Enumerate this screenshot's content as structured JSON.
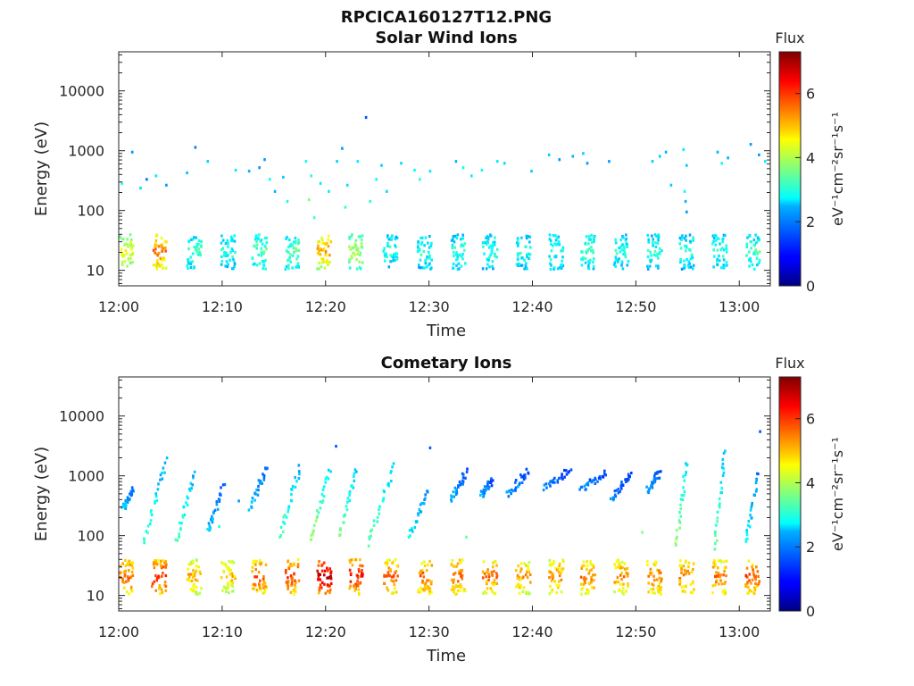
{
  "page_title": "RPCICA160127T12.PNG",
  "chart_data": [
    {
      "type": "heatmap",
      "title": "Solar Wind Ions",
      "xlabel": "Time",
      "ylabel": "Energy (eV)",
      "x_ticks": [
        "12:00",
        "12:10",
        "12:20",
        "12:30",
        "12:40",
        "12:50",
        "13:00"
      ],
      "x_tick_minutes": [
        0,
        10,
        20,
        30,
        40,
        50,
        60
      ],
      "xlim_minutes": [
        0,
        63
      ],
      "y_scale": "log",
      "ylim": [
        5.5,
        45000
      ],
      "y_ticks": [
        10,
        100,
        1000,
        10000
      ],
      "y_tick_labels": [
        "10",
        "100",
        "1000",
        "10000"
      ],
      "colorbar": {
        "title": "Flux",
        "label": "eV⁻¹cm⁻²sr⁻¹s⁻¹",
        "range": [
          0,
          7.3
        ],
        "ticks": [
          0,
          2,
          4,
          6
        ],
        "colormap": "jet"
      },
      "low_energy_bursts": [
        {
          "t": 0.6,
          "v": 4.5
        },
        {
          "t": 3.8,
          "v": 5.5
        },
        {
          "t": 7.2,
          "v": 3.2
        },
        {
          "t": 10.5,
          "v": 3.0
        },
        {
          "t": 13.5,
          "v": 3.3
        },
        {
          "t": 16.7,
          "v": 3.4
        },
        {
          "t": 19.8,
          "v": 5.2
        },
        {
          "t": 22.8,
          "v": 4.0
        },
        {
          "t": 26.2,
          "v": 3.0
        },
        {
          "t": 29.5,
          "v": 3.0
        },
        {
          "t": 32.7,
          "v": 3.0
        },
        {
          "t": 35.8,
          "v": 3.0
        },
        {
          "t": 39.0,
          "v": 3.0
        },
        {
          "t": 42.2,
          "v": 3.0
        },
        {
          "t": 45.3,
          "v": 3.2
        },
        {
          "t": 48.5,
          "v": 3.0
        },
        {
          "t": 51.7,
          "v": 3.0
        },
        {
          "t": 54.8,
          "v": 3.0
        },
        {
          "t": 58.0,
          "v": 3.0
        },
        {
          "t": 61.2,
          "v": 3.2
        }
      ],
      "scattered_pixels": [
        {
          "t": 0.2,
          "e": 300,
          "v": 2.8
        },
        {
          "t": 1.2,
          "e": 1000,
          "v": 2.0
        },
        {
          "t": 2.0,
          "e": 250,
          "v": 2.5
        },
        {
          "t": 2.6,
          "e": 350,
          "v": 1.8
        },
        {
          "t": 3.5,
          "e": 400,
          "v": 2.6
        },
        {
          "t": 4.5,
          "e": 280,
          "v": 2.0
        },
        {
          "t": 6.5,
          "e": 450,
          "v": 2.3
        },
        {
          "t": 7.3,
          "e": 1200,
          "v": 1.8
        },
        {
          "t": 8.5,
          "e": 700,
          "v": 2.4
        },
        {
          "t": 11.2,
          "e": 500,
          "v": 2.6
        },
        {
          "t": 12.5,
          "e": 480,
          "v": 2.2
        },
        {
          "t": 13.5,
          "e": 550,
          "v": 2.0
        },
        {
          "t": 14.0,
          "e": 750,
          "v": 2.0
        },
        {
          "t": 14.5,
          "e": 350,
          "v": 2.8
        },
        {
          "t": 15.0,
          "e": 220,
          "v": 2.2
        },
        {
          "t": 15.8,
          "e": 380,
          "v": 2.4
        },
        {
          "t": 16.2,
          "e": 150,
          "v": 2.9
        },
        {
          "t": 18.0,
          "e": 700,
          "v": 2.8
        },
        {
          "t": 18.5,
          "e": 400,
          "v": 3.0
        },
        {
          "t": 18.3,
          "e": 160,
          "v": 3.6
        },
        {
          "t": 18.8,
          "e": 80,
          "v": 3.2
        },
        {
          "t": 19.4,
          "e": 300,
          "v": 2.6
        },
        {
          "t": 20.2,
          "e": 220,
          "v": 2.6
        },
        {
          "t": 21.0,
          "e": 700,
          "v": 2.4
        },
        {
          "t": 21.5,
          "e": 1150,
          "v": 2.0
        },
        {
          "t": 21.8,
          "e": 120,
          "v": 3.0
        },
        {
          "t": 22.0,
          "e": 280,
          "v": 2.5
        },
        {
          "t": 23.0,
          "e": 700,
          "v": 2.6
        },
        {
          "t": 23.8,
          "e": 3800,
          "v": 1.5
        },
        {
          "t": 24.2,
          "e": 150,
          "v": 3.0
        },
        {
          "t": 24.8,
          "e": 350,
          "v": 2.8
        },
        {
          "t": 25.3,
          "e": 600,
          "v": 2.4
        },
        {
          "t": 25.8,
          "e": 220,
          "v": 2.5
        },
        {
          "t": 27.2,
          "e": 650,
          "v": 2.5
        },
        {
          "t": 28.5,
          "e": 500,
          "v": 2.8
        },
        {
          "t": 29.0,
          "e": 350,
          "v": 3.0
        },
        {
          "t": 30.0,
          "e": 480,
          "v": 2.6
        },
        {
          "t": 32.5,
          "e": 700,
          "v": 2.2
        },
        {
          "t": 33.2,
          "e": 550,
          "v": 2.8
        },
        {
          "t": 34.0,
          "e": 400,
          "v": 2.6
        },
        {
          "t": 35.0,
          "e": 500,
          "v": 2.8
        },
        {
          "t": 36.5,
          "e": 700,
          "v": 2.6
        },
        {
          "t": 37.2,
          "e": 650,
          "v": 2.5
        },
        {
          "t": 39.8,
          "e": 480,
          "v": 2.4
        },
        {
          "t": 41.5,
          "e": 900,
          "v": 2.4
        },
        {
          "t": 42.5,
          "e": 750,
          "v": 2.0
        },
        {
          "t": 43.8,
          "e": 850,
          "v": 2.2
        },
        {
          "t": 44.8,
          "e": 950,
          "v": 2.4
        },
        {
          "t": 45.2,
          "e": 650,
          "v": 2.0
        },
        {
          "t": 47.3,
          "e": 700,
          "v": 2.0
        },
        {
          "t": 51.5,
          "e": 700,
          "v": 2.4
        },
        {
          "t": 52.2,
          "e": 850,
          "v": 2.4
        },
        {
          "t": 52.8,
          "e": 1000,
          "v": 2.2
        },
        {
          "t": 53.3,
          "e": 280,
          "v": 2.4
        },
        {
          "t": 54.5,
          "e": 1100,
          "v": 2.6
        },
        {
          "t": 54.8,
          "e": 600,
          "v": 2.4
        },
        {
          "t": 54.6,
          "e": 220,
          "v": 2.8
        },
        {
          "t": 54.7,
          "e": 150,
          "v": 2.2
        },
        {
          "t": 54.8,
          "e": 100,
          "v": 2.0
        },
        {
          "t": 57.8,
          "e": 1000,
          "v": 2.2
        },
        {
          "t": 58.2,
          "e": 650,
          "v": 2.8
        },
        {
          "t": 58.8,
          "e": 800,
          "v": 2.2
        },
        {
          "t": 61.0,
          "e": 1350,
          "v": 2.0
        },
        {
          "t": 61.8,
          "e": 900,
          "v": 2.0
        },
        {
          "t": 62.4,
          "e": 700,
          "v": 2.6
        }
      ]
    },
    {
      "type": "heatmap",
      "title": "Cometary Ions",
      "xlabel": "Time",
      "ylabel": "Energy (eV)",
      "x_ticks": [
        "12:00",
        "12:10",
        "12:20",
        "12:30",
        "12:40",
        "12:50",
        "13:00"
      ],
      "x_tick_minutes": [
        0,
        10,
        20,
        30,
        40,
        50,
        60
      ],
      "xlim_minutes": [
        0,
        63
      ],
      "y_scale": "log",
      "ylim": [
        5.5,
        45000
      ],
      "y_ticks": [
        10,
        100,
        1000,
        10000
      ],
      "y_tick_labels": [
        "10",
        "100",
        "1000",
        "10000"
      ],
      "colorbar": {
        "title": "Flux",
        "label": "eV⁻¹cm⁻²sr⁻¹s⁻¹",
        "range": [
          0,
          7.3
        ],
        "ticks": [
          0,
          2,
          4,
          6
        ],
        "colormap": "jet"
      },
      "low_energy_bursts": [
        {
          "t": 0.6,
          "v": 5.8
        },
        {
          "t": 3.8,
          "v": 6.2
        },
        {
          "t": 7.2,
          "v": 5.2
        },
        {
          "t": 10.5,
          "v": 5.0
        },
        {
          "t": 13.5,
          "v": 5.8
        },
        {
          "t": 16.7,
          "v": 6.0
        },
        {
          "t": 19.8,
          "v": 6.8
        },
        {
          "t": 22.8,
          "v": 6.3
        },
        {
          "t": 26.2,
          "v": 5.8
        },
        {
          "t": 29.5,
          "v": 5.7
        },
        {
          "t": 32.7,
          "v": 5.8
        },
        {
          "t": 35.8,
          "v": 5.6
        },
        {
          "t": 39.0,
          "v": 5.3
        },
        {
          "t": 42.2,
          "v": 5.4
        },
        {
          "t": 45.3,
          "v": 5.6
        },
        {
          "t": 48.5,
          "v": 5.4
        },
        {
          "t": 51.7,
          "v": 5.6
        },
        {
          "t": 54.8,
          "v": 5.5
        },
        {
          "t": 58.0,
          "v": 5.6
        },
        {
          "t": 61.2,
          "v": 5.8
        }
      ],
      "streaks": [
        {
          "t0": 0.3,
          "t1": 1.3,
          "e0": 300,
          "e1": 600,
          "v": 2.5
        },
        {
          "t0": 2.3,
          "t1": 4.5,
          "e0": 80,
          "e1": 2000,
          "v": 3.2
        },
        {
          "t0": 5.4,
          "t1": 7.2,
          "e0": 80,
          "e1": 1100,
          "v": 3.3
        },
        {
          "t0": 8.5,
          "t1": 10.0,
          "e0": 120,
          "e1": 700,
          "v": 2.4
        },
        {
          "t0": 12.5,
          "t1": 14.3,
          "e0": 300,
          "e1": 1500,
          "v": 2.4
        },
        {
          "t0": 15.5,
          "t1": 17.4,
          "e0": 100,
          "e1": 1500,
          "v": 3.3
        },
        {
          "t0": 18.5,
          "t1": 20.3,
          "e0": 80,
          "e1": 1300,
          "v": 4.0
        },
        {
          "t0": 21.2,
          "t1": 22.8,
          "e0": 100,
          "e1": 1400,
          "v": 3.6
        },
        {
          "t0": 24.0,
          "t1": 26.5,
          "e0": 80,
          "e1": 1500,
          "v": 3.5
        },
        {
          "t0": 28.0,
          "t1": 29.8,
          "e0": 100,
          "e1": 600,
          "v": 2.8
        },
        {
          "t0": 32.0,
          "t1": 33.5,
          "e0": 400,
          "e1": 1200,
          "v": 2.2
        },
        {
          "t0": 35.0,
          "t1": 36.0,
          "e0": 500,
          "e1": 900,
          "v": 2.2
        },
        {
          "t0": 37.5,
          "t1": 39.5,
          "e0": 500,
          "e1": 1300,
          "v": 2.0
        },
        {
          "t0": 41.0,
          "t1": 43.5,
          "e0": 700,
          "e1": 1300,
          "v": 2.0
        },
        {
          "t0": 44.5,
          "t1": 47.0,
          "e0": 600,
          "e1": 1200,
          "v": 2.0
        },
        {
          "t0": 47.5,
          "t1": 49.5,
          "e0": 400,
          "e1": 1200,
          "v": 2.0
        },
        {
          "t0": 51.0,
          "t1": 52.2,
          "e0": 600,
          "e1": 1200,
          "v": 2.2
        },
        {
          "t0": 53.8,
          "t1": 54.8,
          "e0": 70,
          "e1": 1800,
          "v": 3.8
        },
        {
          "t0": 57.5,
          "t1": 58.5,
          "e0": 60,
          "e1": 3000,
          "v": 3.5
        },
        {
          "t0": 60.5,
          "t1": 61.8,
          "e0": 80,
          "e1": 1200,
          "v": 2.8
        }
      ],
      "scattered_pixels": [
        {
          "t": 20.9,
          "e": 3300,
          "v": 1.5
        },
        {
          "t": 30.0,
          "e": 3100,
          "v": 1.5
        },
        {
          "t": 61.9,
          "e": 5800,
          "v": 1.5
        },
        {
          "t": 9.0,
          "e": 200,
          "v": 2.4
        },
        {
          "t": 9.6,
          "e": 150,
          "v": 3.0
        },
        {
          "t": 11.5,
          "e": 400,
          "v": 2.0
        },
        {
          "t": 33.5,
          "e": 100,
          "v": 3.4
        },
        {
          "t": 50.5,
          "e": 120,
          "v": 3.6
        },
        {
          "t": 38.5,
          "e": 700,
          "v": 2.2
        }
      ]
    }
  ]
}
